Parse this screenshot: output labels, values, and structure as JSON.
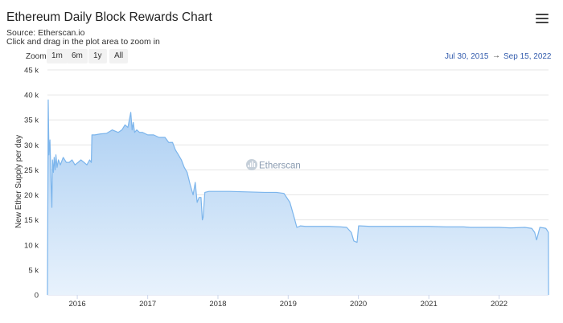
{
  "header": {
    "title": "Ethereum Daily Block Rewards Chart",
    "source": "Source: Etherscan.io",
    "hint": "Click and drag in the plot area to zoom in",
    "menu_icon": "hamburger-menu-icon"
  },
  "zoom": {
    "label": "Zoom",
    "buttons": [
      "1m",
      "6m",
      "1y",
      "All"
    ]
  },
  "range": {
    "from": "Jul 30, 2015",
    "arrow": "→",
    "to": "Sep 15, 2022"
  },
  "watermark": {
    "text": "Etherscan",
    "icon": "etherscan-logo-icon"
  },
  "colors": {
    "line": "#7cb5ec",
    "fill_top": "#a9cdf2",
    "fill_bottom": "#e8f2fc",
    "grid": "#e6e6e6",
    "range_text": "#335cad"
  },
  "chart_data": {
    "type": "area",
    "title": "Ethereum Daily Block Rewards Chart",
    "ylabel": "New Ether Supply per day",
    "xlabel": "",
    "ylim": [
      0,
      45000
    ],
    "xlim": [
      "2015-07-30",
      "2022-09-15"
    ],
    "y_ticks": [
      0,
      5000,
      10000,
      15000,
      20000,
      25000,
      30000,
      35000,
      40000,
      45000
    ],
    "y_tick_labels": [
      "0",
      "5 k",
      "10 k",
      "15 k",
      "20 k",
      "25 k",
      "30 k",
      "35 k",
      "40 k",
      "45 k"
    ],
    "x_ticks": [
      "2016-01-01",
      "2017-01-01",
      "2018-01-01",
      "2019-01-01",
      "2020-01-01",
      "2021-01-01",
      "2022-01-01"
    ],
    "x_tick_labels": [
      "2016",
      "2017",
      "2018",
      "2019",
      "2020",
      "2021",
      "2022"
    ],
    "grid": true,
    "legend": "none",
    "series": [
      {
        "x": [
          "2015-07-30",
          "2015-08-03",
          "2015-08-07",
          "2015-08-12",
          "2015-08-18",
          "2015-08-22",
          "2015-08-25",
          "2015-08-30",
          "2015-09-03",
          "2015-09-08",
          "2015-09-12",
          "2015-09-18",
          "2015-09-25",
          "2015-10-05",
          "2015-10-20",
          "2015-11-05",
          "2015-11-20",
          "2015-12-05",
          "2015-12-20",
          "2016-01-05",
          "2016-01-20",
          "2016-02-05",
          "2016-02-20",
          "2016-03-05",
          "2016-03-14",
          "2016-03-17",
          "2016-04-01",
          "2016-05-01",
          "2016-06-01",
          "2016-07-01",
          "2016-08-01",
          "2016-08-20",
          "2016-09-05",
          "2016-09-20",
          "2016-10-05",
          "2016-10-12",
          "2016-10-18",
          "2016-10-25",
          "2016-11-05",
          "2016-11-20",
          "2016-12-05",
          "2017-01-01",
          "2017-02-01",
          "2017-03-01",
          "2017-03-15",
          "2017-04-01",
          "2017-04-20",
          "2017-05-10",
          "2017-05-25",
          "2017-06-10",
          "2017-06-25",
          "2017-07-10",
          "2017-07-25",
          "2017-08-10",
          "2017-08-25",
          "2017-09-05",
          "2017-09-15",
          "2017-09-25",
          "2017-10-05",
          "2017-10-12",
          "2017-10-16",
          "2017-10-25",
          "2017-11-15",
          "2018-01-01",
          "2018-03-01",
          "2018-06-01",
          "2018-09-01",
          "2018-11-01",
          "2018-12-10",
          "2019-01-10",
          "2019-02-01",
          "2019-02-15",
          "2019-02-28",
          "2019-03-05",
          "2019-04-01",
          "2019-06-01",
          "2019-08-01",
          "2019-10-01",
          "2019-11-01",
          "2019-11-25",
          "2019-12-08",
          "2019-12-25",
          "2020-01-02",
          "2020-01-10",
          "2020-03-01",
          "2020-06-01",
          "2020-09-01",
          "2021-01-01",
          "2021-04-01",
          "2021-07-01",
          "2021-08-05",
          "2021-10-01",
          "2022-01-01",
          "2022-03-01",
          "2022-05-15",
          "2022-06-20",
          "2022-07-05",
          "2022-07-15",
          "2022-08-01",
          "2022-08-20",
          "2022-09-01",
          "2022-09-10",
          "2022-09-14",
          "2022-09-15"
        ],
        "values": [
          0,
          39000,
          28000,
          31000,
          22000,
          17500,
          27000,
          24500,
          27500,
          25000,
          28000,
          25500,
          27000,
          26000,
          27500,
          26500,
          26500,
          27000,
          26000,
          26500,
          27000,
          26500,
          26000,
          27000,
          26500,
          32000,
          32000,
          32200,
          32300,
          33000,
          32500,
          33000,
          34000,
          33500,
          36500,
          33000,
          34500,
          32500,
          33000,
          32500,
          32500,
          32000,
          32000,
          31500,
          31500,
          31500,
          30500,
          30500,
          29000,
          28000,
          27000,
          25500,
          24500,
          22000,
          20000,
          22500,
          18500,
          19500,
          19500,
          15000,
          15500,
          20500,
          20700,
          20700,
          20700,
          20600,
          20500,
          20500,
          20300,
          18500,
          15500,
          13500,
          13700,
          13800,
          13700,
          13700,
          13700,
          13600,
          13500,
          12500,
          10800,
          10500,
          13800,
          13800,
          13700,
          13700,
          13700,
          13700,
          13600,
          13600,
          13500,
          13500,
          13500,
          13400,
          13500,
          13300,
          12500,
          11000,
          13500,
          13400,
          13300,
          12800,
          12500,
          0
        ]
      }
    ]
  }
}
